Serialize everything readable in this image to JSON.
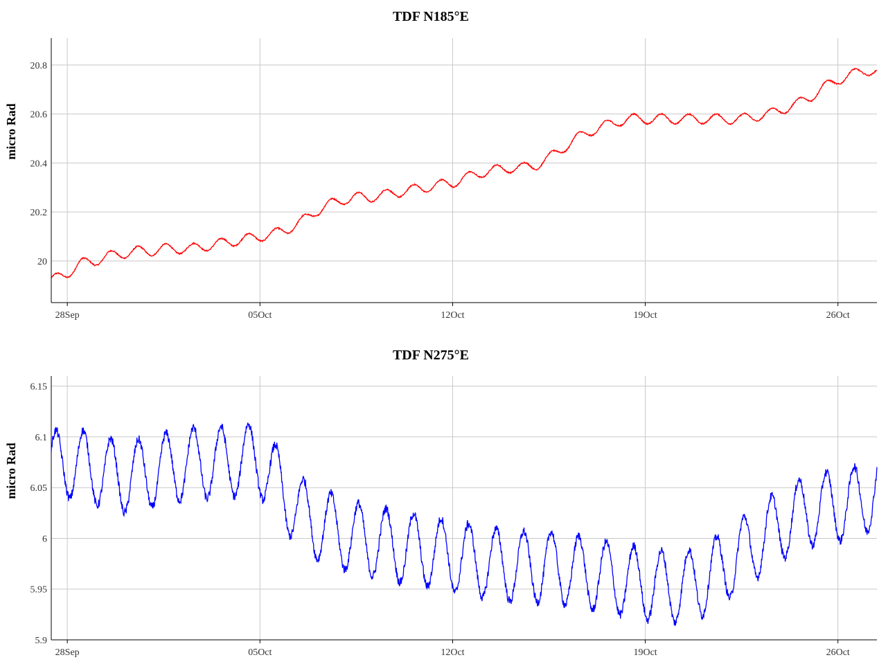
{
  "chart_data": [
    {
      "type": "line",
      "title": "TDF N185°E",
      "ylabel": "micro Rad",
      "xlabel": "",
      "x_ticks": [
        {
          "date": "2019-09-28",
          "label": "28Sep"
        },
        {
          "date": "2019-10-05",
          "label": "05Oct"
        },
        {
          "date": "2019-10-12",
          "label": "12Oct"
        },
        {
          "date": "2019-10-19",
          "label": "19Oct"
        },
        {
          "date": "2019-10-26",
          "label": "26Oct"
        }
      ],
      "xlim": [
        "2019-09-27T10:00",
        "2019-10-27T10:00"
      ],
      "y_ticks": [
        20,
        20.2,
        20.4,
        20.6,
        20.8
      ],
      "ylim": [
        19.83,
        20.91
      ],
      "grid": true,
      "series": [
        {
          "color": "#ff0000",
          "points": [
            [
              "2019-09-27T10:00",
              19.92
            ],
            [
              "2019-09-28T00:00",
              19.95
            ],
            [
              "2019-09-28T12:00",
              19.99
            ],
            [
              "2019-09-29T00:00",
              20.0
            ],
            [
              "2019-09-29T12:00",
              20.02
            ],
            [
              "2019-09-30T00:00",
              20.03
            ],
            [
              "2019-09-30T12:00",
              20.04
            ],
            [
              "2019-10-01T00:00",
              20.04
            ],
            [
              "2019-10-01T12:00",
              20.05
            ],
            [
              "2019-10-02T00:00",
              20.05
            ],
            [
              "2019-10-02T12:00",
              20.05
            ],
            [
              "2019-10-03T00:00",
              20.06
            ],
            [
              "2019-10-03T12:00",
              20.07
            ],
            [
              "2019-10-04T00:00",
              20.08
            ],
            [
              "2019-10-04T12:00",
              20.09
            ],
            [
              "2019-10-05T00:00",
              20.1
            ],
            [
              "2019-10-05T12:00",
              20.11
            ],
            [
              "2019-10-06T00:00",
              20.13
            ],
            [
              "2019-10-06T12:00",
              20.16
            ],
            [
              "2019-10-07T00:00",
              20.2
            ],
            [
              "2019-10-07T12:00",
              20.23
            ],
            [
              "2019-10-08T00:00",
              20.25
            ],
            [
              "2019-10-08T12:00",
              20.26
            ],
            [
              "2019-10-09T00:00",
              20.26
            ],
            [
              "2019-10-09T12:00",
              20.27
            ],
            [
              "2019-10-10T00:00",
              20.28
            ],
            [
              "2019-10-10T12:00",
              20.29
            ],
            [
              "2019-10-11T00:00",
              20.3
            ],
            [
              "2019-10-11T12:00",
              20.31
            ],
            [
              "2019-10-12T00:00",
              20.32
            ],
            [
              "2019-10-12T12:00",
              20.34
            ],
            [
              "2019-10-13T00:00",
              20.36
            ],
            [
              "2019-10-13T12:00",
              20.37
            ],
            [
              "2019-10-14T00:00",
              20.38
            ],
            [
              "2019-10-14T12:00",
              20.38
            ],
            [
              "2019-10-15T00:00",
              20.39
            ],
            [
              "2019-10-15T12:00",
              20.42
            ],
            [
              "2019-10-16T00:00",
              20.46
            ],
            [
              "2019-10-16T12:00",
              20.5
            ],
            [
              "2019-10-17T00:00",
              20.53
            ],
            [
              "2019-10-17T12:00",
              20.55
            ],
            [
              "2019-10-18T00:00",
              20.57
            ],
            [
              "2019-10-18T12:00",
              20.58
            ],
            [
              "2019-10-19T00:00",
              20.58
            ],
            [
              "2019-10-19T12:00",
              20.58
            ],
            [
              "2019-10-20T00:00",
              20.58
            ],
            [
              "2019-10-20T12:00",
              20.58
            ],
            [
              "2019-10-21T00:00",
              20.58
            ],
            [
              "2019-10-21T12:00",
              20.58
            ],
            [
              "2019-10-22T00:00",
              20.58
            ],
            [
              "2019-10-22T12:00",
              20.58
            ],
            [
              "2019-10-23T00:00",
              20.59
            ],
            [
              "2019-10-23T12:00",
              20.6
            ],
            [
              "2019-10-24T00:00",
              20.62
            ],
            [
              "2019-10-24T12:00",
              20.64
            ],
            [
              "2019-10-25T00:00",
              20.67
            ],
            [
              "2019-10-25T12:00",
              20.71
            ],
            [
              "2019-10-26T00:00",
              20.74
            ],
            [
              "2019-10-26T12:00",
              20.76
            ],
            [
              "2019-10-27T00:00",
              20.78
            ],
            [
              "2019-10-27T10:00",
              20.77
            ]
          ],
          "daily_cycle_amplitude": 0.02
        }
      ]
    },
    {
      "type": "line",
      "title": "TDF N275°E",
      "ylabel": "micro Rad",
      "xlabel": "",
      "x_ticks": [
        {
          "date": "2019-09-28",
          "label": "28Sep"
        },
        {
          "date": "2019-10-05",
          "label": "05Oct"
        },
        {
          "date": "2019-10-12",
          "label": "12Oct"
        },
        {
          "date": "2019-10-19",
          "label": "19Oct"
        },
        {
          "date": "2019-10-26",
          "label": "26Oct"
        }
      ],
      "xlim": [
        "2019-09-27T10:00",
        "2019-10-27T10:00"
      ],
      "y_ticks": [
        5.9,
        5.95,
        6,
        6.05,
        6.1,
        6.15
      ],
      "ylim": [
        5.9,
        6.16
      ],
      "grid": true,
      "series": [
        {
          "color": "#0000ff",
          "points": [
            [
              "2019-09-27T10:00",
              6.07
            ],
            [
              "2019-09-28T00:00",
              6.075
            ],
            [
              "2019-09-28T12:00",
              6.072
            ],
            [
              "2019-09-29T00:00",
              6.068
            ],
            [
              "2019-09-29T12:00",
              6.064
            ],
            [
              "2019-09-30T00:00",
              6.06
            ],
            [
              "2019-09-30T12:00",
              6.062
            ],
            [
              "2019-10-01T00:00",
              6.065
            ],
            [
              "2019-10-01T12:00",
              6.068
            ],
            [
              "2019-10-02T00:00",
              6.072
            ],
            [
              "2019-10-02T12:00",
              6.074
            ],
            [
              "2019-10-03T00:00",
              6.074
            ],
            [
              "2019-10-03T12:00",
              6.075
            ],
            [
              "2019-10-04T00:00",
              6.076
            ],
            [
              "2019-10-04T12:00",
              6.078
            ],
            [
              "2019-10-05T00:00",
              6.076
            ],
            [
              "2019-10-05T12:00",
              6.06
            ],
            [
              "2019-10-06T00:00",
              6.04
            ],
            [
              "2019-10-06T12:00",
              6.025
            ],
            [
              "2019-10-07T00:00",
              6.015
            ],
            [
              "2019-10-07T12:00",
              6.01
            ],
            [
              "2019-10-08T00:00",
              6.005
            ],
            [
              "2019-10-08T12:00",
              6.0
            ],
            [
              "2019-10-09T00:00",
              5.998
            ],
            [
              "2019-10-09T12:00",
              5.995
            ],
            [
              "2019-10-10T00:00",
              5.992
            ],
            [
              "2019-10-10T12:00",
              5.99
            ],
            [
              "2019-10-11T00:00",
              5.988
            ],
            [
              "2019-10-11T12:00",
              5.985
            ],
            [
              "2019-10-12T00:00",
              5.982
            ],
            [
              "2019-10-12T12:00",
              5.98
            ],
            [
              "2019-10-13T00:00",
              5.977
            ],
            [
              "2019-10-13T12:00",
              5.975
            ],
            [
              "2019-10-14T00:00",
              5.973
            ],
            [
              "2019-10-14T12:00",
              5.972
            ],
            [
              "2019-10-15T00:00",
              5.972
            ],
            [
              "2019-10-15T12:00",
              5.972
            ],
            [
              "2019-10-16T00:00",
              5.97
            ],
            [
              "2019-10-16T12:00",
              5.968
            ],
            [
              "2019-10-17T00:00",
              5.965
            ],
            [
              "2019-10-17T12:00",
              5.962
            ],
            [
              "2019-10-18T00:00",
              5.96
            ],
            [
              "2019-10-18T12:00",
              5.958
            ],
            [
              "2019-10-19T00:00",
              5.955
            ],
            [
              "2019-10-19T12:00",
              5.953
            ],
            [
              "2019-10-20T00:00",
              5.952
            ],
            [
              "2019-10-20T12:00",
              5.953
            ],
            [
              "2019-10-21T00:00",
              5.958
            ],
            [
              "2019-10-21T12:00",
              5.965
            ],
            [
              "2019-10-22T00:00",
              5.975
            ],
            [
              "2019-10-22T12:00",
              5.985
            ],
            [
              "2019-10-23T00:00",
              5.995
            ],
            [
              "2019-10-23T12:00",
              6.005
            ],
            [
              "2019-10-24T00:00",
              6.015
            ],
            [
              "2019-10-24T12:00",
              6.022
            ],
            [
              "2019-10-25T00:00",
              6.028
            ],
            [
              "2019-10-25T12:00",
              6.03
            ],
            [
              "2019-10-26T00:00",
              6.032
            ],
            [
              "2019-10-26T12:00",
              6.035
            ],
            [
              "2019-10-27T00:00",
              6.04
            ],
            [
              "2019-10-27T10:00",
              6.05
            ]
          ],
          "daily_cycle_amplitude": 0.035
        }
      ]
    }
  ]
}
